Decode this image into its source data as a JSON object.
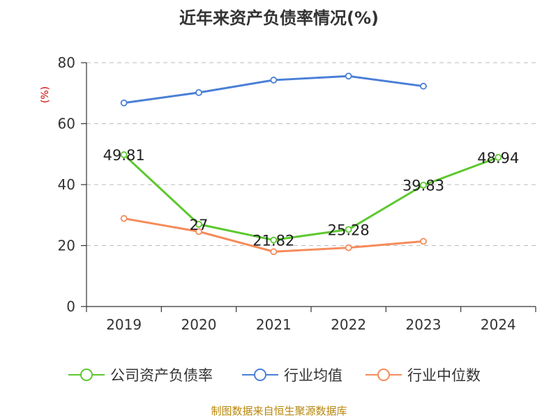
{
  "title": "近年来资产负债率情况(%)",
  "unit_label": "(%)",
  "source": "制图数据来自恒生聚源数据库",
  "colors": {
    "company": "#5cc82f",
    "industry_avg": "#4a7fd6",
    "industry_median": "#f58b5a",
    "grid": "#bbbbbb",
    "axis": "#333333"
  },
  "chart_data": {
    "type": "line",
    "title": "近年来资产负债率情况(%)",
    "xlabel": "",
    "ylabel": "(%)",
    "categories": [
      "2019",
      "2020",
      "2021",
      "2022",
      "2023",
      "2024"
    ],
    "ylim": [
      0,
      80
    ],
    "yticks": [
      0,
      20,
      40,
      60,
      80
    ],
    "grid": true,
    "legend_position": "bottom",
    "series": [
      {
        "name": "公司资产负债率",
        "color": "#5cc82f",
        "values": [
          49.81,
          27,
          21.82,
          25.28,
          39.83,
          48.94
        ],
        "labels": [
          "49.81",
          "27",
          "21.82",
          "25.28",
          "39.83",
          "48.94"
        ]
      },
      {
        "name": "行业均值",
        "color": "#4a7fd6",
        "values": [
          66.8,
          70.2,
          74.3,
          75.6,
          72.3,
          null
        ]
      },
      {
        "name": "行业中位数",
        "color": "#f58b5a",
        "values": [
          28.9,
          24.6,
          18.0,
          19.3,
          21.4,
          null
        ]
      }
    ]
  }
}
